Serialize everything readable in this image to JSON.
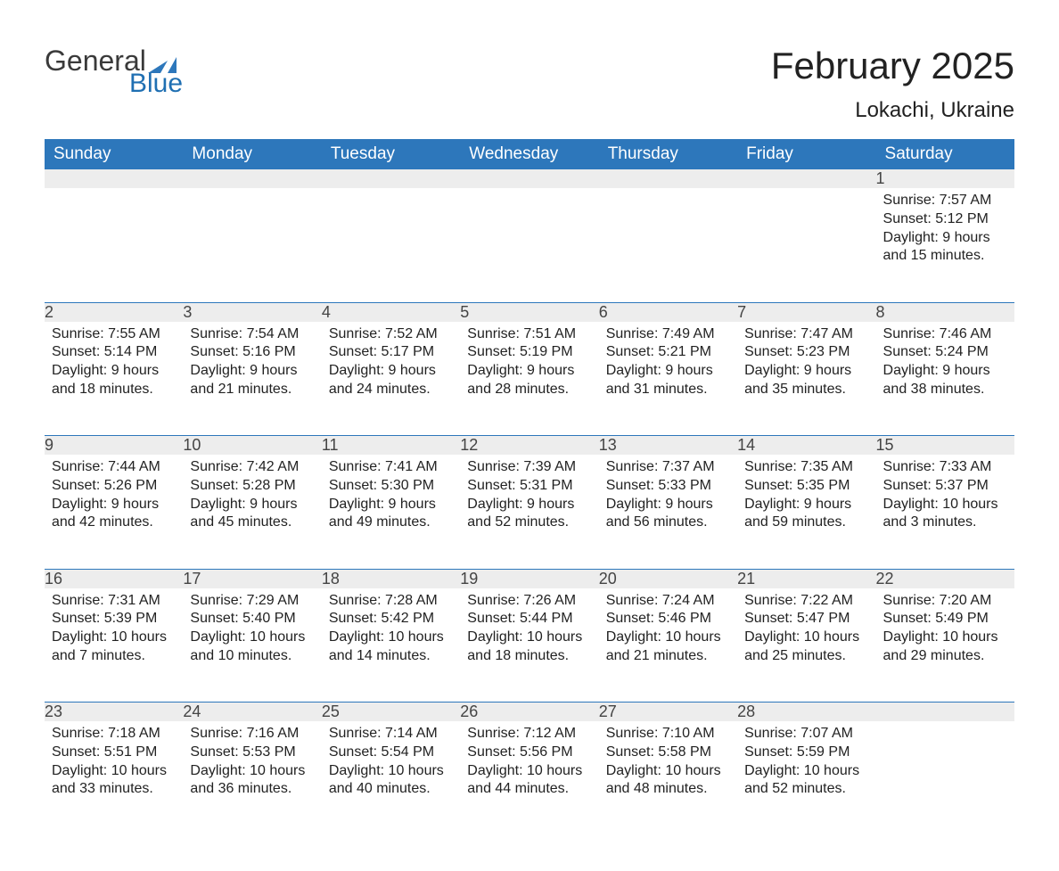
{
  "logo": {
    "text_general": "General",
    "text_blue": "Blue",
    "flag_color": "#2d77bb"
  },
  "header": {
    "month_title": "February 2025",
    "location": "Lokachi, Ukraine"
  },
  "colors": {
    "header_bg": "#2d77bb",
    "header_text": "#ffffff",
    "daynum_bg": "#ededed",
    "body_text": "#222222",
    "page_bg": "#ffffff",
    "rule": "#2d77bb"
  },
  "typography": {
    "month_title_fontsize": 42,
    "location_fontsize": 24,
    "header_fontsize": 19,
    "daynum_fontsize": 18,
    "body_fontsize": 16
  },
  "weekdays": [
    "Sunday",
    "Monday",
    "Tuesday",
    "Wednesday",
    "Thursday",
    "Friday",
    "Saturday"
  ],
  "weeks": [
    [
      null,
      null,
      null,
      null,
      null,
      null,
      {
        "n": "1",
        "sunrise": "Sunrise: 7:57 AM",
        "sunset": "Sunset: 5:12 PM",
        "daylight": "Daylight: 9 hours and 15 minutes."
      }
    ],
    [
      {
        "n": "2",
        "sunrise": "Sunrise: 7:55 AM",
        "sunset": "Sunset: 5:14 PM",
        "daylight": "Daylight: 9 hours and 18 minutes."
      },
      {
        "n": "3",
        "sunrise": "Sunrise: 7:54 AM",
        "sunset": "Sunset: 5:16 PM",
        "daylight": "Daylight: 9 hours and 21 minutes."
      },
      {
        "n": "4",
        "sunrise": "Sunrise: 7:52 AM",
        "sunset": "Sunset: 5:17 PM",
        "daylight": "Daylight: 9 hours and 24 minutes."
      },
      {
        "n": "5",
        "sunrise": "Sunrise: 7:51 AM",
        "sunset": "Sunset: 5:19 PM",
        "daylight": "Daylight: 9 hours and 28 minutes."
      },
      {
        "n": "6",
        "sunrise": "Sunrise: 7:49 AM",
        "sunset": "Sunset: 5:21 PM",
        "daylight": "Daylight: 9 hours and 31 minutes."
      },
      {
        "n": "7",
        "sunrise": "Sunrise: 7:47 AM",
        "sunset": "Sunset: 5:23 PM",
        "daylight": "Daylight: 9 hours and 35 minutes."
      },
      {
        "n": "8",
        "sunrise": "Sunrise: 7:46 AM",
        "sunset": "Sunset: 5:24 PM",
        "daylight": "Daylight: 9 hours and 38 minutes."
      }
    ],
    [
      {
        "n": "9",
        "sunrise": "Sunrise: 7:44 AM",
        "sunset": "Sunset: 5:26 PM",
        "daylight": "Daylight: 9 hours and 42 minutes."
      },
      {
        "n": "10",
        "sunrise": "Sunrise: 7:42 AM",
        "sunset": "Sunset: 5:28 PM",
        "daylight": "Daylight: 9 hours and 45 minutes."
      },
      {
        "n": "11",
        "sunrise": "Sunrise: 7:41 AM",
        "sunset": "Sunset: 5:30 PM",
        "daylight": "Daylight: 9 hours and 49 minutes."
      },
      {
        "n": "12",
        "sunrise": "Sunrise: 7:39 AM",
        "sunset": "Sunset: 5:31 PM",
        "daylight": "Daylight: 9 hours and 52 minutes."
      },
      {
        "n": "13",
        "sunrise": "Sunrise: 7:37 AM",
        "sunset": "Sunset: 5:33 PM",
        "daylight": "Daylight: 9 hours and 56 minutes."
      },
      {
        "n": "14",
        "sunrise": "Sunrise: 7:35 AM",
        "sunset": "Sunset: 5:35 PM",
        "daylight": "Daylight: 9 hours and 59 minutes."
      },
      {
        "n": "15",
        "sunrise": "Sunrise: 7:33 AM",
        "sunset": "Sunset: 5:37 PM",
        "daylight": "Daylight: 10 hours and 3 minutes."
      }
    ],
    [
      {
        "n": "16",
        "sunrise": "Sunrise: 7:31 AM",
        "sunset": "Sunset: 5:39 PM",
        "daylight": "Daylight: 10 hours and 7 minutes."
      },
      {
        "n": "17",
        "sunrise": "Sunrise: 7:29 AM",
        "sunset": "Sunset: 5:40 PM",
        "daylight": "Daylight: 10 hours and 10 minutes."
      },
      {
        "n": "18",
        "sunrise": "Sunrise: 7:28 AM",
        "sunset": "Sunset: 5:42 PM",
        "daylight": "Daylight: 10 hours and 14 minutes."
      },
      {
        "n": "19",
        "sunrise": "Sunrise: 7:26 AM",
        "sunset": "Sunset: 5:44 PM",
        "daylight": "Daylight: 10 hours and 18 minutes."
      },
      {
        "n": "20",
        "sunrise": "Sunrise: 7:24 AM",
        "sunset": "Sunset: 5:46 PM",
        "daylight": "Daylight: 10 hours and 21 minutes."
      },
      {
        "n": "21",
        "sunrise": "Sunrise: 7:22 AM",
        "sunset": "Sunset: 5:47 PM",
        "daylight": "Daylight: 10 hours and 25 minutes."
      },
      {
        "n": "22",
        "sunrise": "Sunrise: 7:20 AM",
        "sunset": "Sunset: 5:49 PM",
        "daylight": "Daylight: 10 hours and 29 minutes."
      }
    ],
    [
      {
        "n": "23",
        "sunrise": "Sunrise: 7:18 AM",
        "sunset": "Sunset: 5:51 PM",
        "daylight": "Daylight: 10 hours and 33 minutes."
      },
      {
        "n": "24",
        "sunrise": "Sunrise: 7:16 AM",
        "sunset": "Sunset: 5:53 PM",
        "daylight": "Daylight: 10 hours and 36 minutes."
      },
      {
        "n": "25",
        "sunrise": "Sunrise: 7:14 AM",
        "sunset": "Sunset: 5:54 PM",
        "daylight": "Daylight: 10 hours and 40 minutes."
      },
      {
        "n": "26",
        "sunrise": "Sunrise: 7:12 AM",
        "sunset": "Sunset: 5:56 PM",
        "daylight": "Daylight: 10 hours and 44 minutes."
      },
      {
        "n": "27",
        "sunrise": "Sunrise: 7:10 AM",
        "sunset": "Sunset: 5:58 PM",
        "daylight": "Daylight: 10 hours and 48 minutes."
      },
      {
        "n": "28",
        "sunrise": "Sunrise: 7:07 AM",
        "sunset": "Sunset: 5:59 PM",
        "daylight": "Daylight: 10 hours and 52 minutes."
      },
      null
    ]
  ]
}
